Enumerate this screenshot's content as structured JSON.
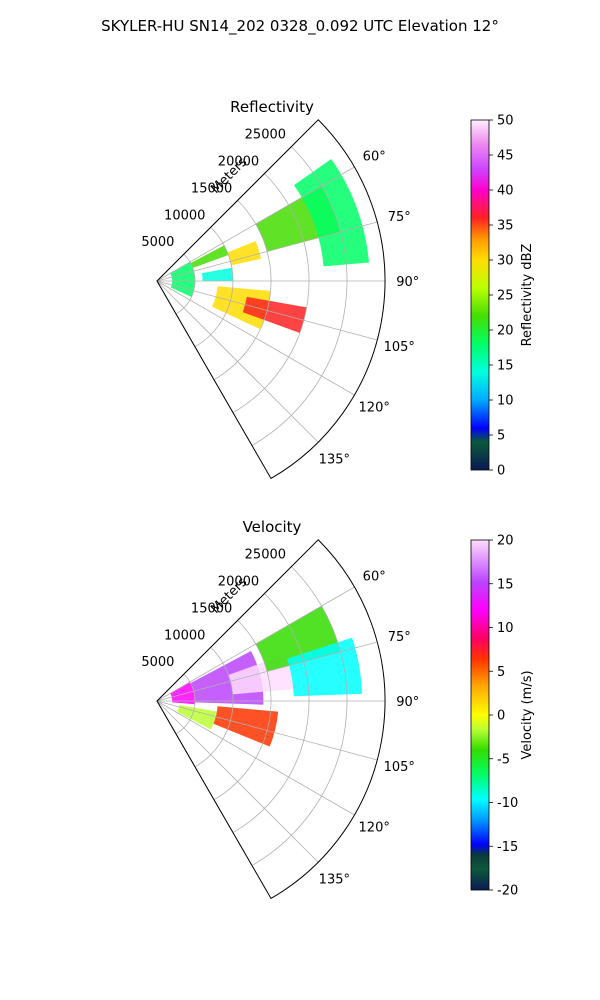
{
  "figure": {
    "title": "SKYLER-HU  SN14_202  0328_0.092 UTC Elevation 12°"
  },
  "chart_data": [
    {
      "type": "heatmap",
      "subtype": "polar-sector",
      "title": "Reflectivity",
      "radial_label": "Meters",
      "r_ticks": [
        "5000",
        "10000",
        "15000",
        "20000",
        "25000"
      ],
      "r_tick_values": [
        5000,
        10000,
        15000,
        20000,
        25000
      ],
      "r_max": 30000,
      "theta_ticks": [
        "60°",
        "75°",
        "90°",
        "105°",
        "120°",
        "135°"
      ],
      "theta_tick_values": [
        60,
        75,
        90,
        105,
        120,
        135
      ],
      "theta_range": [
        45,
        150
      ],
      "theta_zero": "north",
      "theta_direction": "clockwise",
      "grid": true,
      "colorbar": {
        "label": "Reflectivity dBZ",
        "range": [
          0,
          50
        ],
        "ticks": [
          "0",
          "5",
          "10",
          "15",
          "20",
          "25",
          "30",
          "35",
          "40",
          "45",
          "50"
        ],
        "tick_values": [
          0,
          5,
          10,
          15,
          20,
          25,
          30,
          35,
          40,
          45,
          50
        ]
      },
      "field": [
        {
          "range": [
            2000,
            5000
          ],
          "az": [
            60,
            115
          ],
          "value": 18
        },
        {
          "range": [
            5000,
            10000
          ],
          "az": [
            62,
            70
          ],
          "value": 22
        },
        {
          "range": [
            10000,
            14000
          ],
          "az": [
            68,
            78
          ],
          "value": 30
        },
        {
          "range": [
            6000,
            10000
          ],
          "az": [
            80,
            90
          ],
          "value": 12
        },
        {
          "range": [
            8000,
            15000
          ],
          "az": [
            95,
            115
          ],
          "value": 30
        },
        {
          "range": [
            12000,
            20000
          ],
          "az": [
            100,
            110
          ],
          "value": 36
        },
        {
          "range": [
            15000,
            25000
          ],
          "az": [
            60,
            75
          ],
          "value": 20
        },
        {
          "range": [
            22000,
            28000
          ],
          "az": [
            55,
            85
          ],
          "value": 18
        }
      ]
    },
    {
      "type": "heatmap",
      "subtype": "polar-sector",
      "title": "Velocity",
      "radial_label": "Meters",
      "r_ticks": [
        "5000",
        "10000",
        "15000",
        "20000",
        "25000"
      ],
      "r_tick_values": [
        5000,
        10000,
        15000,
        20000,
        25000
      ],
      "r_max": 30000,
      "theta_ticks": [
        "60°",
        "75°",
        "90°",
        "105°",
        "120°",
        "135°"
      ],
      "theta_tick_values": [
        60,
        75,
        90,
        105,
        120,
        135
      ],
      "theta_range": [
        45,
        150
      ],
      "theta_zero": "north",
      "theta_direction": "clockwise",
      "grid": true,
      "colorbar": {
        "label": "Velocity (m/s)",
        "range": [
          -20,
          20
        ],
        "ticks": [
          "-20",
          "-15",
          "-10",
          "-5",
          "0",
          "5",
          "10",
          "15",
          "20"
        ],
        "tick_values": [
          -20,
          -15,
          -10,
          -5,
          0,
          5,
          10,
          15,
          20
        ]
      },
      "field": [
        {
          "range": [
            2000,
            5000
          ],
          "az": [
            60,
            95
          ],
          "value": 10
        },
        {
          "range": [
            5000,
            14000
          ],
          "az": [
            62,
            92
          ],
          "value": 14
        },
        {
          "range": [
            10000,
            18000
          ],
          "az": [
            70,
            85
          ],
          "value": 16
        },
        {
          "range": [
            8000,
            16000
          ],
          "az": [
            95,
            112
          ],
          "value": 6
        },
        {
          "range": [
            3000,
            8000
          ],
          "az": [
            100,
            118
          ],
          "value": -3
        },
        {
          "range": [
            15000,
            25000
          ],
          "az": [
            60,
            75
          ],
          "value": -6
        },
        {
          "range": [
            18000,
            27000
          ],
          "az": [
            72,
            88
          ],
          "value": -11
        }
      ]
    }
  ]
}
